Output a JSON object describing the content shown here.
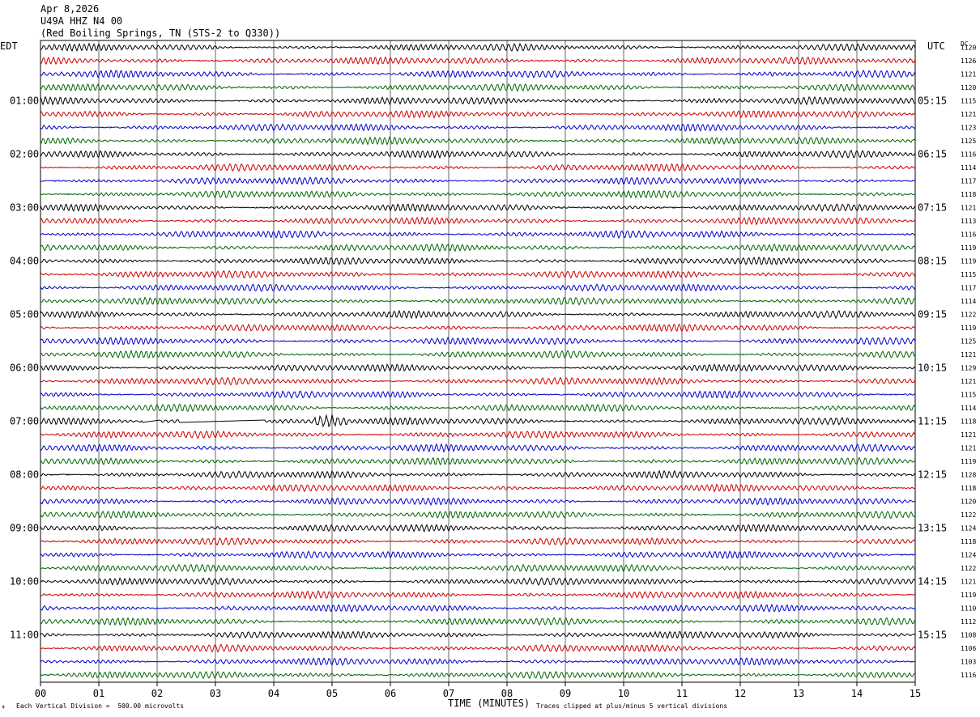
{
  "header": {
    "date": "Apr 8,2026",
    "station": "U49A HHZ N4 00",
    "location": "(Red Boiling Springs, TN (STS-2 to Q330))"
  },
  "left_timezone": "EDT",
  "right_timezone": "UTC",
  "right_column_label": "DC",
  "footer": {
    "xlabel": "TIME (MINUTES)",
    "scale_note": "Each Vertical Division =  500.00 microvolts",
    "clip_note": "Traces clipped at plus/minus 5 vertical divisions"
  },
  "colors": {
    "black": "#000000",
    "red": "#cc0000",
    "blue": "#0000cc",
    "green": "#006600",
    "grid": "#000000"
  },
  "chart_data": {
    "type": "line",
    "title": "U49A HHZ N4 00",
    "xlabel": "TIME (MINUTES)",
    "xlim": [
      0,
      15
    ],
    "x_ticks": [
      "00",
      "01",
      "02",
      "03",
      "04",
      "05",
      "06",
      "07",
      "08",
      "09",
      "10",
      "11",
      "12",
      "13",
      "14",
      "15"
    ],
    "trace_color_cycle": [
      "black",
      "red",
      "blue",
      "green"
    ],
    "left_hour_labels": [
      "01:00",
      "02:00",
      "03:00",
      "04:00",
      "05:00",
      "06:00",
      "07:00",
      "08:00",
      "09:00",
      "10:00",
      "11:00"
    ],
    "right_hour_labels": [
      "05:15",
      "06:15",
      "07:15",
      "08:15",
      "09:15",
      "10:15",
      "11:15",
      "12:15",
      "13:15",
      "14:15",
      "15:15"
    ],
    "dc_offsets": [
      1120,
      1126,
      1121,
      1120,
      1115,
      1121,
      1123,
      1125,
      1116,
      1114,
      1117,
      1118,
      1121,
      1113,
      1116,
      1119,
      1119,
      1115,
      1117,
      1114,
      1122,
      1119,
      1125,
      1121,
      1129,
      1121,
      1115,
      1114,
      1118,
      1121,
      1121,
      1119,
      1128,
      1118,
      1120,
      1122,
      1124,
      1118,
      1124,
      1122,
      1121,
      1119,
      1110,
      1112,
      1108,
      1106,
      1103,
      1116
    ],
    "events": [
      {
        "trace_index": 28,
        "description": "flat gap",
        "x_start_min": 1.75,
        "x_end_min": 2.05
      },
      {
        "trace_index": 28,
        "description": "flat gap",
        "x_start_min": 2.4,
        "x_end_min": 3.85
      },
      {
        "trace_index": 28,
        "description": "burst",
        "x_start_min": 4.7,
        "x_end_min": 5.25
      }
    ]
  }
}
